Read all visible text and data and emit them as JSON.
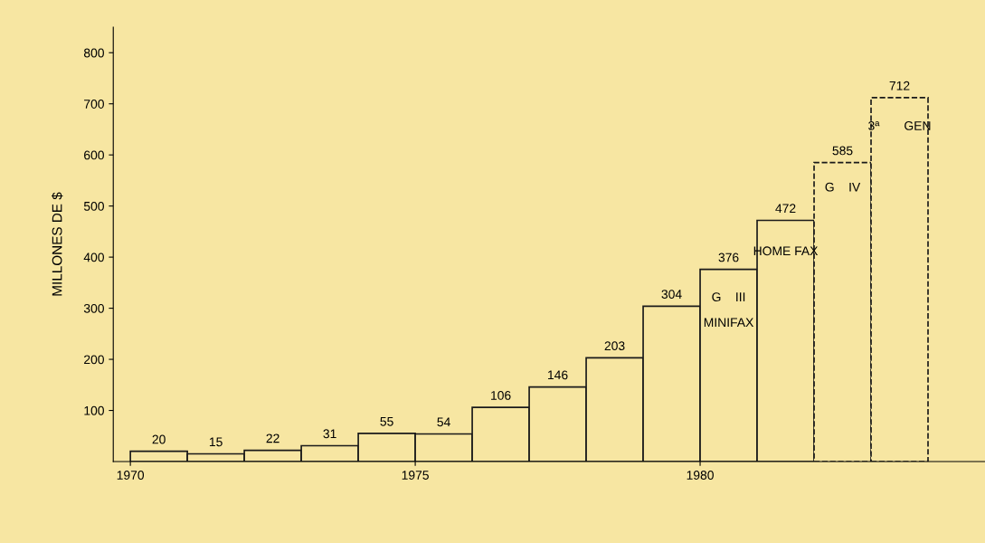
{
  "chart_data": {
    "type": "bar",
    "ylabel": "MILLONES DE $",
    "x": [
      1970,
      1971,
      1972,
      1973,
      1974,
      1975,
      1976,
      1977,
      1978,
      1979,
      1980,
      1981,
      1982,
      1983
    ],
    "series": [
      {
        "color": "#1a1a1a",
        "line_style": "solid",
        "values": [
          20,
          15,
          22,
          31,
          55,
          54,
          106,
          146,
          203,
          304,
          376,
          472,
          null,
          null
        ]
      },
      {
        "color": "#1a1a1a",
        "line_style": "dashed",
        "values": [
          null,
          null,
          null,
          null,
          null,
          null,
          null,
          null,
          null,
          null,
          null,
          null,
          585,
          712
        ]
      }
    ],
    "data_labels": true,
    "xlim": [
      1969.7,
      1985.0
    ],
    "xticks": [
      1970,
      1975,
      1980
    ],
    "ylim": [
      0,
      850
    ],
    "yticks": [
      100,
      200,
      300,
      400,
      500,
      600,
      700,
      800
    ],
    "grid": false,
    "annotations": [
      {
        "text": "G    III",
        "x": 1980,
        "y": 320
      },
      {
        "text": "MINIFAX",
        "x": 1980,
        "y": 270
      },
      {
        "text": "HOME FAX",
        "x": 1981,
        "y": 410
      },
      {
        "text": "G    IV",
        "x": 1982,
        "y": 535
      },
      {
        "text": "3ª       GEN",
        "x": 1983,
        "y": 655
      }
    ]
  }
}
